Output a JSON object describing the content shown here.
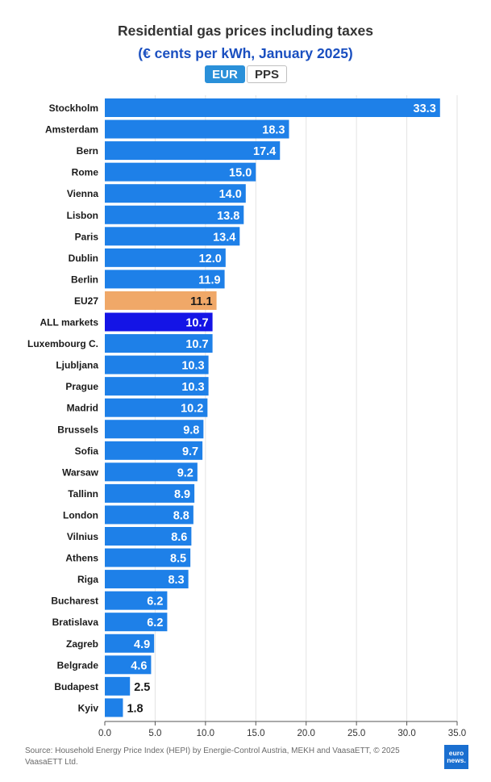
{
  "header": {
    "title": "Residential gas prices including taxes",
    "subtitle": "(€ cents per kWh, January 2025)",
    "toggle": {
      "active": "EUR",
      "inactive": "PPS"
    }
  },
  "footer": {
    "source": "Source: Household Energy Price Index (HEPI) by Energie-Control Austria, MEKH and VaasaETT, © 2025 VaasaETT Ltd.",
    "logo_line1": "euro",
    "logo_line2": "news."
  },
  "chart_data": {
    "type": "bar",
    "orientation": "horizontal",
    "title": "Residential gas prices including taxes",
    "subtitle": "(€ cents per kWh, January 2025)",
    "categories": [
      "Stockholm",
      "Amsterdam",
      "Bern",
      "Rome",
      "Vienna",
      "Lisbon",
      "Paris",
      "Dublin",
      "Berlin",
      "EU27",
      "ALL markets",
      "Luxembourg C.",
      "Ljubljana",
      "Prague",
      "Madrid",
      "Brussels",
      "Sofia",
      "Warsaw",
      "Tallinn",
      "London",
      "Vilnius",
      "Athens",
      "Riga",
      "Bucharest",
      "Bratislava",
      "Zagreb",
      "Belgrade",
      "Budapest",
      "Kyiv"
    ],
    "values": [
      33.3,
      18.3,
      17.4,
      15.0,
      14.0,
      13.8,
      13.4,
      12.0,
      11.9,
      11.1,
      10.7,
      10.7,
      10.3,
      10.3,
      10.2,
      9.8,
      9.7,
      9.2,
      8.9,
      8.8,
      8.6,
      8.5,
      8.3,
      6.2,
      6.2,
      4.9,
      4.6,
      2.5,
      1.8
    ],
    "value_labels": [
      "33.3",
      "18.3",
      "17.4",
      "15.0",
      "14.0",
      "13.8",
      "13.4",
      "12.0",
      "11.9",
      "11.1",
      "10.7",
      "10.7",
      "10.3",
      "10.3",
      "10.2",
      "9.8",
      "9.7",
      "9.2",
      "8.9",
      "8.8",
      "8.6",
      "8.5",
      "8.3",
      "6.2",
      "6.2",
      "4.9",
      "4.6",
      "2.5",
      "1.8"
    ],
    "highlight": {
      "EU27": "#f0a868",
      "ALL markets": "#1414e6"
    },
    "bar_color": "#1e80e8",
    "xlim": [
      0,
      35
    ],
    "xticks": [
      "0.0",
      "5.0",
      "10.0",
      "15.0",
      "20.0",
      "25.0",
      "30.0",
      "35.0"
    ],
    "xtick_values": [
      0,
      5,
      10,
      15,
      20,
      25,
      30,
      35
    ],
    "grid": true,
    "legend": "none"
  }
}
